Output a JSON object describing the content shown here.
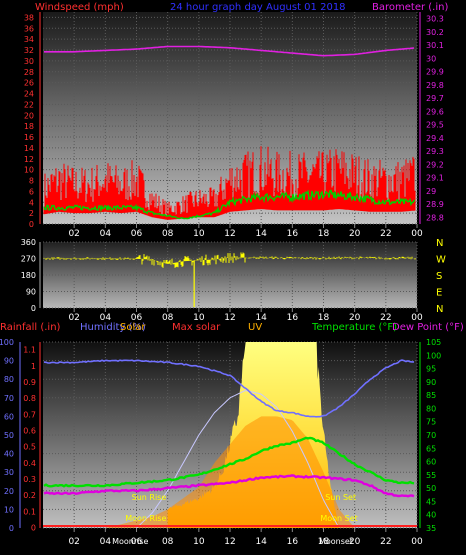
{
  "chart_data": [
    {
      "type": "line",
      "header": {
        "left": "Windspeed (mph)",
        "center": "24 hour graph day  August 01 2018",
        "right": "Barometer (.in)"
      },
      "x_ticks": [
        "02",
        "04",
        "06",
        "08",
        "10",
        "12",
        "14",
        "16",
        "18",
        "20",
        "22",
        "00"
      ],
      "y_left_ticks": [
        "0",
        "2",
        "4",
        "6",
        "8",
        "10",
        "12",
        "14",
        "16",
        "18",
        "20",
        "22",
        "24",
        "26",
        "28",
        "30",
        "32",
        "34",
        "36",
        "38"
      ],
      "y_right_ticks": [
        "28.8",
        "28.9",
        "29",
        "29.1",
        "29.2",
        "29.3",
        "29.4",
        "29.5",
        "29.6",
        "29.7",
        "29.8",
        "29.9",
        "30",
        "30.1",
        "30.2",
        "30.3"
      ],
      "ylim_left": [
        0,
        39
      ],
      "ylim_right": [
        28.75,
        30.35
      ],
      "series": [
        {
          "name": "Barometer",
          "color": "#e020e0",
          "x": [
            0,
            2,
            4,
            6,
            8,
            10,
            12,
            14,
            16,
            18,
            20,
            22,
            24
          ],
          "values": [
            30.05,
            30.05,
            30.06,
            30.07,
            30.09,
            30.09,
            30.08,
            30.06,
            30.04,
            30.02,
            30.03,
            30.06,
            30.08
          ]
        },
        {
          "name": "Wind gust",
          "color": "#ff0000",
          "x": [
            0,
            1,
            2,
            3,
            4,
            5,
            6,
            7,
            8,
            9,
            10,
            11,
            12,
            13,
            14,
            15,
            16,
            17,
            18,
            19,
            20,
            21,
            22,
            23,
            24
          ],
          "values": [
            7,
            9,
            8,
            8,
            9,
            8,
            9,
            5,
            3,
            4,
            5,
            5,
            9,
            10,
            11,
            10,
            10,
            10,
            10,
            11,
            10,
            9,
            9,
            9,
            10
          ]
        },
        {
          "name": "Wind average",
          "color": "#00d000",
          "x": [
            0,
            2,
            4,
            6,
            7,
            8,
            9,
            10,
            11,
            12,
            14,
            16,
            18,
            20,
            22,
            24
          ],
          "values": [
            3,
            3,
            3,
            3,
            2,
            1.5,
            1,
            1.5,
            2,
            4,
            5,
            5,
            5.5,
            5,
            4,
            4
          ]
        }
      ]
    },
    {
      "type": "scatter",
      "left_ticks": [
        "360",
        "270",
        "180",
        "90",
        "0"
      ],
      "right_labels": [
        "N",
        "W",
        "S",
        "E",
        "N"
      ],
      "x_ticks": [
        "02",
        "04",
        "06",
        "08",
        "10",
        "12",
        "14",
        "16",
        "18",
        "20",
        "22",
        "00"
      ],
      "ylim": [
        0,
        360
      ],
      "series": [
        {
          "name": "Wind direction",
          "color": "#ffff00",
          "x": [
            0,
            2,
            4,
            6,
            7,
            8,
            9,
            10,
            11,
            12,
            14,
            16,
            18,
            20,
            22,
            24
          ],
          "values": [
            270,
            270,
            270,
            268,
            265,
            240,
            255,
            260,
            265,
            275,
            275,
            272,
            272,
            274,
            272,
            272
          ]
        }
      ]
    },
    {
      "type": "area",
      "header": {
        "rainfall": "Rainfall (.in)",
        "humidity": "Humidity (%)",
        "solar": "Solar",
        "max_solar": "Max solar",
        "uv": "UV",
        "temperature": "Temperature (°F)",
        "dew_point": "Dew Point (°F)"
      },
      "x_ticks": [
        "02",
        "04",
        "06",
        "08",
        "10",
        "12",
        "14",
        "16",
        "18",
        "20",
        "22",
        "00"
      ],
      "y_humidity_ticks": [
        "0",
        "10",
        "20",
        "30",
        "40",
        "50",
        "60",
        "70",
        "80",
        "90",
        "100"
      ],
      "y_rain_ticks": [
        "0",
        "0.1",
        "0.2",
        "0.3",
        "0.4",
        "0.5",
        "0.6",
        "0.7",
        "0.8",
        "0.9",
        "1",
        "1.1"
      ],
      "y_temp_ticks": [
        "35",
        "40",
        "45",
        "50",
        "55",
        "60",
        "65",
        "70",
        "75",
        "80",
        "85",
        "90",
        "95",
        "100",
        "105"
      ],
      "ylim_humidity": [
        0,
        100
      ],
      "ylim_temp": [
        35,
        105
      ],
      "annotations": {
        "sun_rise": "Sun Rise",
        "sun_set": "Sun Set",
        "moon_rise": "Moon Rise",
        "moon_set": "Moon Set",
        "moon_rise_axis": "Moonrise",
        "moon_set_axis": "Moonset"
      },
      "series": [
        {
          "name": "Humidity",
          "color": "#7070ff",
          "x": [
            0,
            2,
            4,
            6,
            8,
            10,
            12,
            13,
            14,
            15,
            16,
            17,
            18,
            19,
            20,
            21,
            22,
            23,
            24
          ],
          "values": [
            89,
            89,
            90,
            90,
            89,
            87,
            82,
            75,
            68,
            63,
            62,
            60,
            60,
            65,
            72,
            80,
            86,
            90,
            89
          ]
        },
        {
          "name": "Temperature",
          "color": "#00e000",
          "x": [
            0,
            2,
            4,
            6,
            8,
            10,
            11,
            12,
            13,
            14,
            15,
            16,
            17,
            18,
            19,
            20,
            21,
            22,
            23,
            24
          ],
          "values": [
            51,
            51,
            51,
            52,
            53,
            55,
            57,
            59,
            61,
            64,
            66,
            67,
            69,
            67,
            63,
            59,
            56,
            53,
            52,
            52
          ]
        },
        {
          "name": "Dew Point",
          "color": "#e000e0",
          "x": [
            0,
            2,
            4,
            6,
            8,
            10,
            12,
            14,
            16,
            18,
            20,
            21,
            22,
            23,
            24
          ],
          "values": [
            48,
            48,
            49,
            49,
            50,
            51,
            52,
            54,
            54.5,
            54,
            53,
            51,
            48,
            47,
            47
          ]
        },
        {
          "name": "Max solar",
          "color": "#c8c8ff",
          "x": [
            6,
            7,
            8,
            9,
            10,
            11,
            12,
            13,
            14,
            15,
            16,
            17,
            18,
            19
          ],
          "values": [
            0,
            8,
            20,
            35,
            50,
            62,
            70,
            74,
            72,
            65,
            52,
            35,
            15,
            0
          ]
        },
        {
          "name": "UV",
          "color": "#ffff00",
          "x": [
            8,
            9,
            10,
            11,
            11.5,
            12,
            12.5,
            13,
            14,
            15,
            16,
            17,
            17.5,
            18,
            18.5,
            19
          ],
          "values": [
            10,
            13,
            16,
            22,
            30,
            45,
            60,
            100,
            100,
            100,
            100,
            100,
            100,
            50,
            20,
            0
          ]
        },
        {
          "name": "Solar",
          "color": "#ffb000",
          "x": [
            4,
            5,
            6,
            7,
            8,
            9,
            10,
            11,
            12,
            13,
            14,
            15,
            16,
            17,
            18,
            19,
            20
          ],
          "values": [
            0,
            2,
            4,
            6,
            10,
            16,
            22,
            35,
            45,
            55,
            60,
            60,
            58,
            48,
            30,
            10,
            0
          ]
        }
      ]
    }
  ]
}
